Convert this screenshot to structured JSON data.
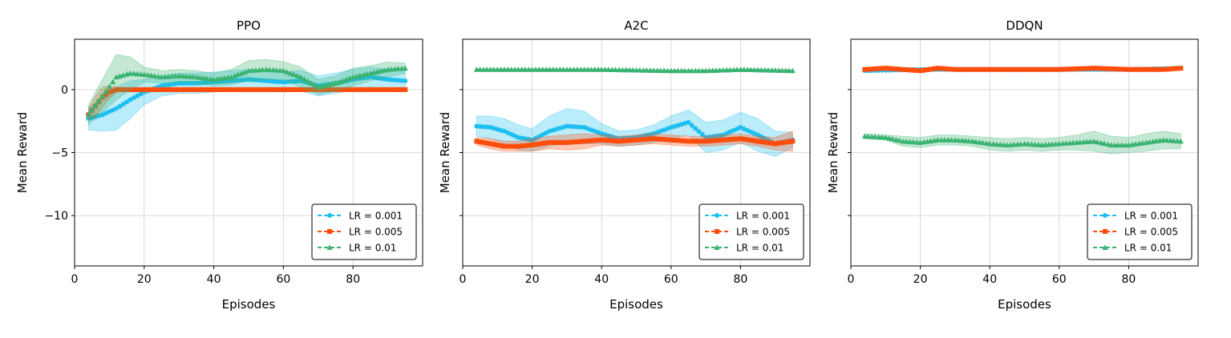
{
  "chart_data": [
    {
      "type": "line",
      "title": "PPO",
      "xlabel": "Episodes",
      "ylabel": "Mean Reward",
      "xlim": [
        0,
        100
      ],
      "ylim": [
        -14,
        4
      ],
      "xticks": [
        0,
        20,
        40,
        60,
        80
      ],
      "yticks": [
        0,
        -5,
        -10
      ],
      "grid": true,
      "legend": "lower-right",
      "series": [
        {
          "name": "LR = 0.001",
          "color": "#1ebff0",
          "marker": "circle",
          "x": [
            4,
            8,
            12,
            16,
            20,
            25,
            30,
            35,
            40,
            45,
            50,
            55,
            60,
            65,
            70,
            75,
            80,
            85,
            90,
            95
          ],
          "y": [
            -2.3,
            -2.0,
            -1.5,
            -0.8,
            -0.2,
            0.3,
            0.5,
            0.5,
            0.6,
            0.7,
            0.8,
            0.7,
            0.6,
            0.7,
            0.3,
            0.5,
            0.8,
            1.0,
            0.8,
            0.7
          ],
          "band": [
            0.9,
            1.3,
            1.7,
            1.5,
            1.0,
            0.8,
            0.8,
            0.8,
            0.8,
            0.8,
            0.8,
            0.8,
            0.8,
            0.8,
            0.8,
            0.8,
            0.8,
            0.8,
            0.8,
            0.8
          ]
        },
        {
          "name": "LR = 0.005",
          "color": "#ff4d0d",
          "marker": "square",
          "x": [
            4,
            6,
            8,
            10,
            12,
            15,
            20,
            30,
            40,
            50,
            60,
            70,
            80,
            90,
            95
          ],
          "y": [
            -2.0,
            -1.3,
            -0.6,
            -0.2,
            0.0,
            0.0,
            0.0,
            0.0,
            0.0,
            0.0,
            0.0,
            0.0,
            0.0,
            0.0,
            0.0
          ],
          "band": [
            0.4,
            0.8,
            0.8,
            0.5,
            0.2,
            0.1,
            0.05,
            0.05,
            0.05,
            0.05,
            0.05,
            0.05,
            0.05,
            0.05,
            0.05
          ]
        },
        {
          "name": "LR = 0.01",
          "color": "#3bb371",
          "marker": "triangle",
          "x": [
            4,
            8,
            12,
            16,
            20,
            25,
            30,
            35,
            40,
            45,
            50,
            55,
            60,
            65,
            70,
            75,
            80,
            85,
            90,
            95
          ],
          "y": [
            -2.0,
            -0.5,
            1.0,
            1.3,
            1.2,
            1.0,
            1.1,
            1.0,
            0.8,
            1.0,
            1.5,
            1.6,
            1.5,
            1.0,
            0.2,
            0.5,
            1.0,
            1.3,
            1.6,
            1.7
          ],
          "band": [
            0.8,
            1.3,
            1.8,
            1.3,
            0.6,
            0.5,
            0.5,
            0.5,
            0.5,
            0.6,
            0.8,
            0.8,
            0.7,
            0.8,
            0.6,
            0.6,
            0.7,
            0.6,
            0.6,
            0.4
          ]
        }
      ]
    },
    {
      "type": "line",
      "title": "A2C",
      "xlabel": "Episodes",
      "ylabel": "Mean Reward",
      "xlim": [
        0,
        100
      ],
      "ylim": [
        -14,
        4
      ],
      "xticks": [
        0,
        20,
        40,
        60,
        80
      ],
      "yticks": [
        0,
        -5,
        -10
      ],
      "grid": true,
      "legend": "lower-right",
      "series": [
        {
          "name": "LR = 0.001",
          "color": "#1ebff0",
          "marker": "circle",
          "x": [
            4,
            8,
            12,
            16,
            20,
            25,
            30,
            35,
            40,
            45,
            50,
            55,
            60,
            65,
            70,
            75,
            80,
            85,
            90,
            95
          ],
          "y": [
            -2.9,
            -3.0,
            -3.3,
            -3.8,
            -4.0,
            -3.3,
            -2.9,
            -3.0,
            -3.5,
            -3.9,
            -3.8,
            -3.5,
            -3.0,
            -2.6,
            -3.8,
            -3.6,
            -3.0,
            -3.6,
            -4.3,
            -4.0
          ],
          "band": [
            0.8,
            0.9,
            1.0,
            1.0,
            0.9,
            1.2,
            1.4,
            1.3,
            0.8,
            0.6,
            0.6,
            0.7,
            0.9,
            1.0,
            1.2,
            1.2,
            1.2,
            1.3,
            1.0,
            0.6
          ]
        },
        {
          "name": "LR = 0.005",
          "color": "#ff4d0d",
          "marker": "square",
          "x": [
            4,
            8,
            12,
            16,
            20,
            25,
            30,
            35,
            40,
            45,
            50,
            55,
            60,
            65,
            70,
            75,
            80,
            85,
            90,
            95
          ],
          "y": [
            -4.1,
            -4.3,
            -4.5,
            -4.5,
            -4.4,
            -4.2,
            -4.2,
            -4.1,
            -4.0,
            -4.1,
            -4.0,
            -3.9,
            -4.0,
            -4.1,
            -4.1,
            -4.0,
            -3.9,
            -4.1,
            -4.3,
            -4.1
          ],
          "band": [
            0.3,
            0.4,
            0.4,
            0.4,
            0.5,
            0.5,
            0.6,
            0.6,
            0.4,
            0.4,
            0.4,
            0.4,
            0.4,
            0.4,
            0.4,
            0.4,
            0.4,
            0.4,
            0.5,
            0.8
          ]
        },
        {
          "name": "LR = 0.01",
          "color": "#3bb371",
          "marker": "triangle",
          "x": [
            4,
            20,
            40,
            60,
            70,
            80,
            95
          ],
          "y": [
            1.6,
            1.6,
            1.6,
            1.5,
            1.5,
            1.6,
            1.5
          ],
          "band": [
            0.05,
            0.05,
            0.05,
            0.05,
            0.05,
            0.05,
            0.05
          ]
        }
      ]
    },
    {
      "type": "line",
      "title": "DDQN",
      "xlabel": "Episodes",
      "ylabel": "Mean Reward",
      "xlim": [
        0,
        100
      ],
      "ylim": [
        -14,
        4
      ],
      "xticks": [
        0,
        20,
        40,
        60,
        80
      ],
      "yticks": [
        0,
        -5,
        -10
      ],
      "grid": true,
      "legend": "lower-right",
      "series": [
        {
          "name": "LR = 0.001",
          "color": "#1ebff0",
          "marker": "circle",
          "x": [
            4,
            20,
            40,
            60,
            80,
            95
          ],
          "y": [
            1.5,
            1.6,
            1.6,
            1.6,
            1.6,
            1.7
          ],
          "band": [
            0.1,
            0.1,
            0.1,
            0.1,
            0.1,
            0.1
          ]
        },
        {
          "name": "LR = 0.005",
          "color": "#ff4d0d",
          "marker": "square",
          "x": [
            4,
            10,
            15,
            20,
            25,
            30,
            40,
            50,
            60,
            70,
            80,
            90,
            95
          ],
          "y": [
            1.6,
            1.7,
            1.6,
            1.5,
            1.7,
            1.6,
            1.6,
            1.6,
            1.6,
            1.7,
            1.6,
            1.6,
            1.7
          ],
          "band": [
            0.1,
            0.1,
            0.1,
            0.1,
            0.1,
            0.1,
            0.1,
            0.1,
            0.1,
            0.1,
            0.1,
            0.1,
            0.1
          ]
        },
        {
          "name": "LR = 0.01",
          "color": "#3bb371",
          "marker": "triangle",
          "x": [
            4,
            10,
            15,
            20,
            25,
            30,
            35,
            40,
            45,
            50,
            55,
            60,
            65,
            70,
            75,
            80,
            85,
            90,
            95
          ],
          "y": [
            -3.7,
            -3.8,
            -4.1,
            -4.2,
            -4.0,
            -4.0,
            -4.1,
            -4.3,
            -4.4,
            -4.3,
            -4.4,
            -4.3,
            -4.2,
            -4.1,
            -4.4,
            -4.4,
            -4.2,
            -4.0,
            -4.1
          ],
          "band": [
            0.2,
            0.2,
            0.4,
            0.4,
            0.4,
            0.4,
            0.4,
            0.5,
            0.5,
            0.5,
            0.5,
            0.5,
            0.6,
            0.8,
            0.7,
            0.6,
            0.7,
            0.7,
            0.6
          ]
        }
      ]
    }
  ]
}
